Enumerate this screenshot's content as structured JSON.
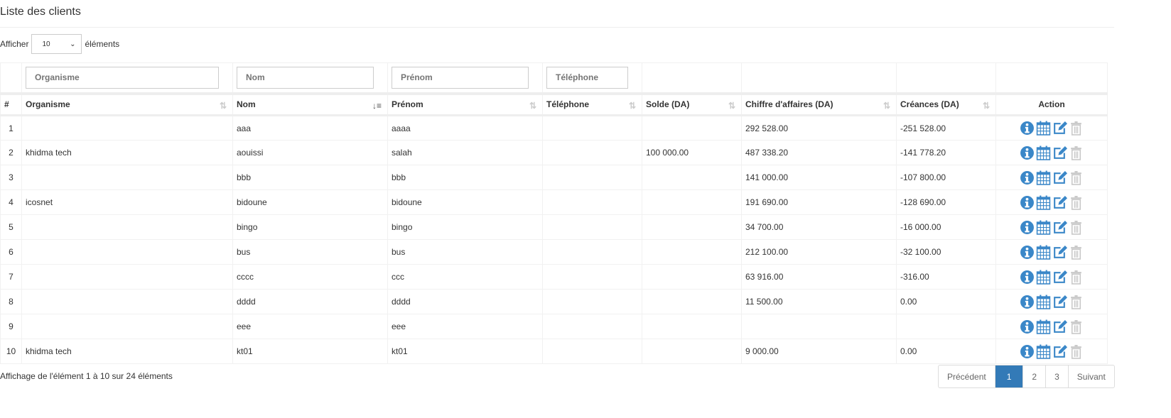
{
  "title": "Liste des clients",
  "length_menu": {
    "prefix": "Afficher",
    "value": "10",
    "suffix": "éléments"
  },
  "filters": {
    "organisme": "Organisme",
    "nom": "Nom",
    "prenom": "Prénom",
    "telephone": "Téléphone"
  },
  "columns": [
    "#",
    "Organisme",
    "Nom",
    "Prénom",
    "Téléphone",
    "Solde (DA)",
    "Chiffre d'affaires (DA)",
    "Créances (DA)",
    "Action"
  ],
  "rows": [
    [
      "1",
      "",
      "aaa",
      "aaaa",
      "",
      "",
      "292 528.00",
      "-251 528.00"
    ],
    [
      "2",
      "khidma tech",
      "aouissi",
      "salah",
      "",
      "100 000.00",
      "487 338.20",
      "-141 778.20"
    ],
    [
      "3",
      "",
      "bbb",
      "bbb",
      "",
      "",
      "141 000.00",
      "-107 800.00"
    ],
    [
      "4",
      "icosnet",
      "bidoune",
      "bidoune",
      "",
      "",
      "191 690.00",
      "-128 690.00"
    ],
    [
      "5",
      "",
      "bingo",
      "bingo",
      "",
      "",
      "34 700.00",
      "-16 000.00"
    ],
    [
      "6",
      "",
      "bus",
      "bus",
      "",
      "",
      "212 100.00",
      "-32 100.00"
    ],
    [
      "7",
      "",
      "cccc",
      "ccc",
      "",
      "",
      "63 916.00",
      "-316.00"
    ],
    [
      "8",
      "",
      "dddd",
      "dddd",
      "",
      "",
      "11 500.00",
      "0.00"
    ],
    [
      "9",
      "",
      "eee",
      "eee",
      "",
      "",
      "",
      ""
    ],
    [
      "10",
      "khidma tech",
      "kt01",
      "kt01",
      "",
      "",
      "9 000.00",
      "0.00"
    ]
  ],
  "info": "Affichage de l'élément 1 à 10 sur 24 éléments",
  "pagination": {
    "prev": "Précédent",
    "pages": [
      "1",
      "2",
      "3"
    ],
    "current": "1",
    "next": "Suivant"
  },
  "colors": {
    "primary": "#337ab7",
    "icon_blue": "#3a87c8",
    "trash": "#c8c8c8"
  }
}
